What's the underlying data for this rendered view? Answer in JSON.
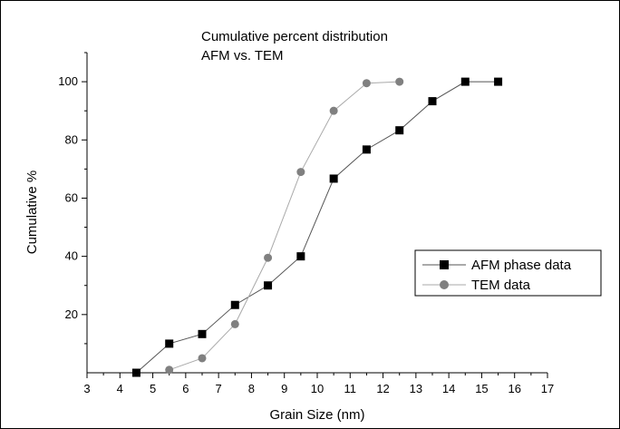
{
  "chart_data": {
    "type": "line",
    "title": "Cumulative percent distribution",
    "subtitle": "AFM vs. TEM",
    "xlabel": "Grain Size (nm)",
    "ylabel": "Cumulative %",
    "xlim": [
      3,
      17
    ],
    "ylim": [
      0,
      110
    ],
    "x_ticks": [
      "3",
      "4",
      "5",
      "6",
      "7",
      "8",
      "9",
      "10",
      "11",
      "12",
      "13",
      "14",
      "15",
      "16",
      "17"
    ],
    "y_ticks": [
      "20",
      "40",
      "60",
      "80",
      "100"
    ],
    "legend_position": "right-middle",
    "grid": false,
    "series": [
      {
        "name": "AFM phase data",
        "marker": "square",
        "marker_color": "#000000",
        "line_color": "#555555",
        "x": [
          4.5,
          5.5,
          6.5,
          7.5,
          8.5,
          9.5,
          10.5,
          11.5,
          12.5,
          13.5,
          14.5,
          15.5
        ],
        "y": [
          0,
          10,
          13.3,
          23.3,
          30,
          40,
          66.7,
          76.7,
          83.3,
          93.3,
          100,
          100
        ]
      },
      {
        "name": "TEM data",
        "marker": "circle",
        "marker_color": "#808080",
        "line_color": "#aaaaaa",
        "x": [
          5.5,
          6.5,
          7.5,
          8.5,
          9.5,
          10.5,
          11.5,
          12.5
        ],
        "y": [
          1,
          5,
          16.7,
          39.5,
          69,
          90,
          99.5,
          100
        ]
      }
    ]
  }
}
